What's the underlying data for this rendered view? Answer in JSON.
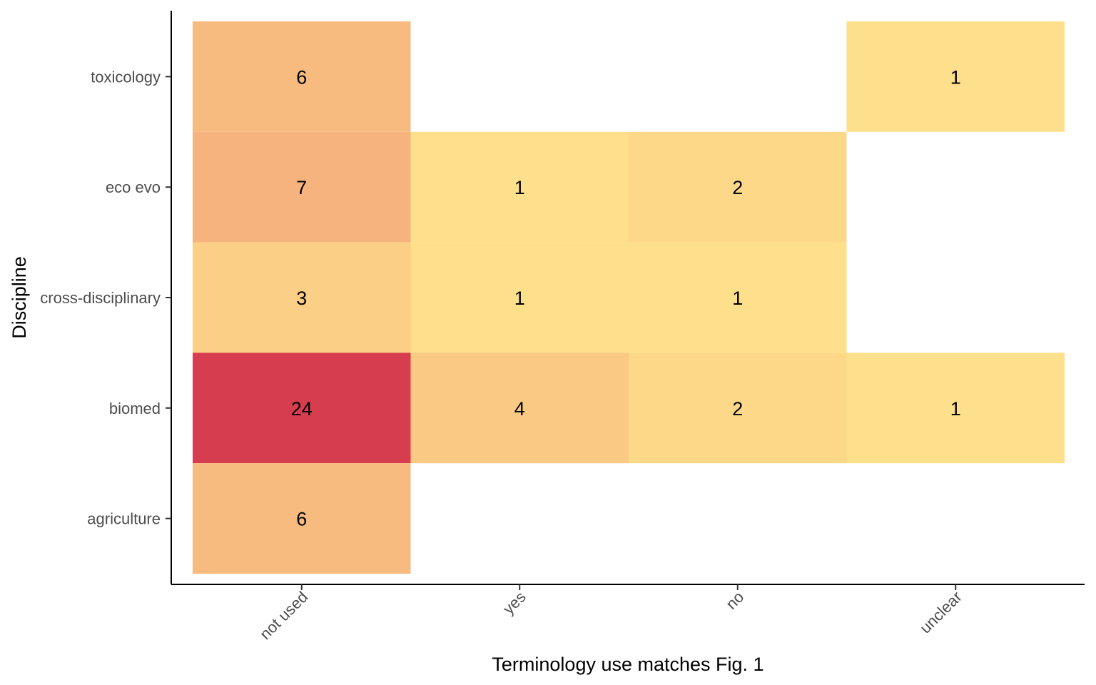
{
  "chart_data": {
    "type": "heatmap",
    "title": "",
    "xlabel": "Terminology use matches Fig. 1",
    "ylabel": "Discipline",
    "x_categories": [
      "not used",
      "yes",
      "no",
      "unclear"
    ],
    "y_categories": [
      "agriculture",
      "biomed",
      "cross-disciplinary",
      "eco evo",
      "toxicology"
    ],
    "cells": [
      {
        "x": "not used",
        "y": "toxicology",
        "value": 6,
        "label": "6"
      },
      {
        "x": "unclear",
        "y": "toxicology",
        "value": 1,
        "label": "1"
      },
      {
        "x": "not used",
        "y": "eco evo",
        "value": 7,
        "label": "7"
      },
      {
        "x": "yes",
        "y": "eco evo",
        "value": 1,
        "label": "1"
      },
      {
        "x": "no",
        "y": "eco evo",
        "value": 2,
        "label": "2"
      },
      {
        "x": "not used",
        "y": "cross-disciplinary",
        "value": 3,
        "label": "3"
      },
      {
        "x": "yes",
        "y": "cross-disciplinary",
        "value": 1,
        "label": "1"
      },
      {
        "x": "no",
        "y": "cross-disciplinary",
        "value": 1,
        "label": "1"
      },
      {
        "x": "not used",
        "y": "biomed",
        "value": 24,
        "label": "24"
      },
      {
        "x": "yes",
        "y": "biomed",
        "value": 4,
        "label": "4"
      },
      {
        "x": "no",
        "y": "biomed",
        "value": 2,
        "label": "2"
      },
      {
        "x": "unclear",
        "y": "biomed",
        "value": 1,
        "label": "1"
      },
      {
        "x": "not used",
        "y": "agriculture",
        "value": 6,
        "label": "6"
      }
    ],
    "color_scale": {
      "low": "#FEDF8B",
      "mid": "#F6B37D",
      "high": "#D63E50",
      "min": 1,
      "mid_value": 7,
      "max": 24
    },
    "legend": "none",
    "grid": false
  }
}
